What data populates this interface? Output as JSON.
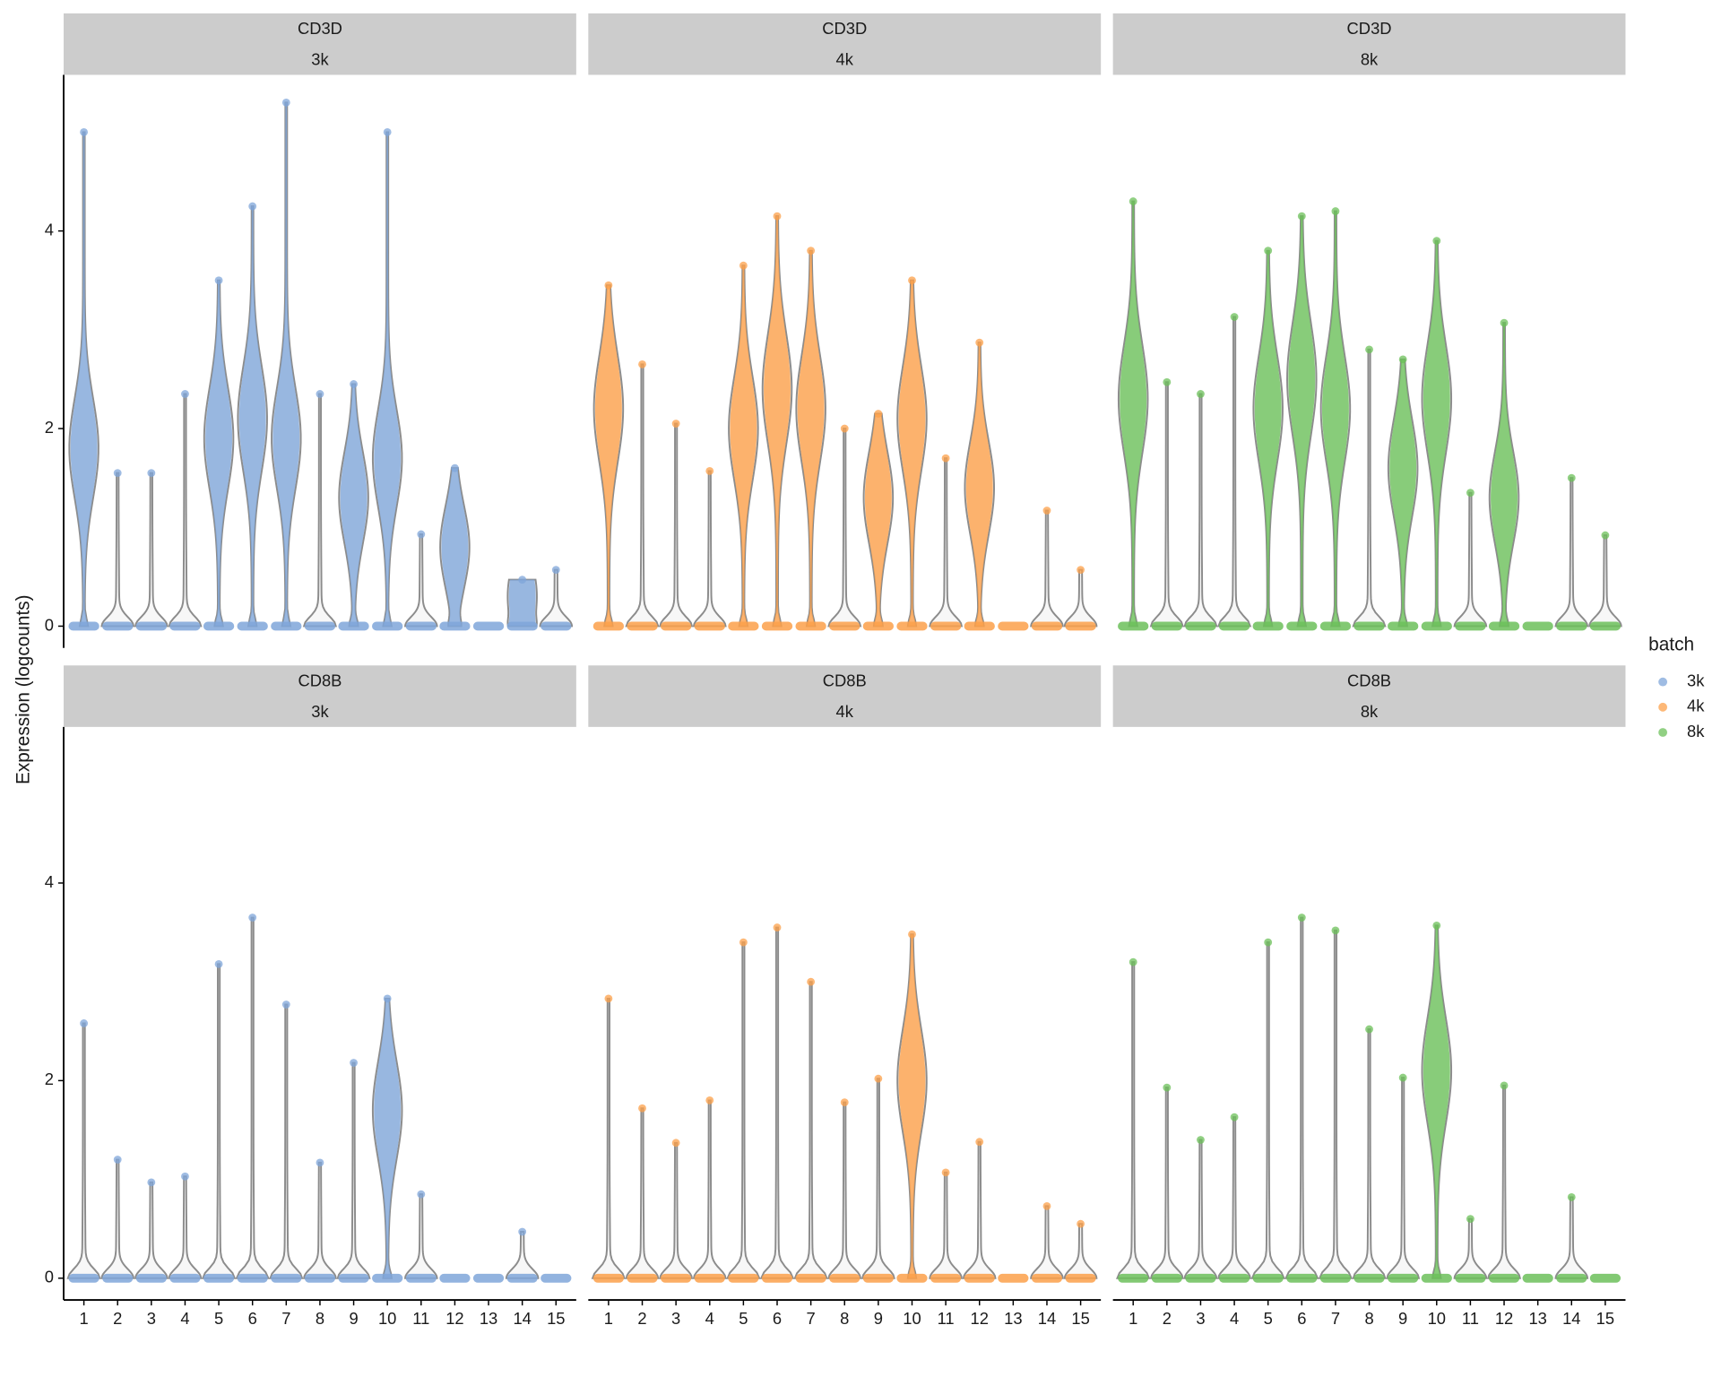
{
  "chart_data": {
    "type": "violin",
    "y_label": "Expression (logcounts)",
    "legend_title": "batch",
    "legend": [
      {
        "name": "3k",
        "color": "#7fa6d9"
      },
      {
        "name": "4k",
        "color": "#fca04a"
      },
      {
        "name": "8k",
        "color": "#6cc05a"
      }
    ],
    "categories": [
      "1",
      "2",
      "3",
      "4",
      "5",
      "6",
      "7",
      "8",
      "9",
      "10",
      "11",
      "12",
      "13",
      "14",
      "15"
    ],
    "ylim": [
      -0.22,
      5.58
    ],
    "yticks": [
      0,
      2,
      4
    ],
    "panels": [
      {
        "gene": "CD3D",
        "batch": "3k",
        "color": "#7fa6d9",
        "values": [
          5.0,
          1.55,
          1.55,
          2.35,
          3.5,
          4.25,
          5.3,
          2.35,
          2.45,
          5.0,
          0.93,
          1.6,
          0,
          0.47,
          0.57
        ],
        "medians": [
          1.8,
          0,
          0,
          0,
          1.9,
          2.1,
          1.9,
          0,
          1.3,
          1.7,
          0,
          0.8,
          0,
          0.3,
          0
        ]
      },
      {
        "gene": "CD3D",
        "batch": "4k",
        "color": "#fca04a",
        "values": [
          3.45,
          2.65,
          2.05,
          1.57,
          3.65,
          4.15,
          3.8,
          2.0,
          2.15,
          3.5,
          1.7,
          2.87,
          0,
          1.17,
          0.57
        ],
        "medians": [
          2.2,
          0,
          0,
          0,
          2.0,
          2.4,
          2.2,
          0,
          1.3,
          2.1,
          0,
          1.4,
          0,
          0,
          0
        ]
      },
      {
        "gene": "CD3D",
        "batch": "8k",
        "color": "#6cc05a",
        "values": [
          4.3,
          2.47,
          2.35,
          3.13,
          3.8,
          4.15,
          4.2,
          2.8,
          2.7,
          3.9,
          1.35,
          3.07,
          0,
          1.5,
          0.92
        ],
        "medians": [
          2.3,
          0,
          0,
          0,
          2.2,
          2.5,
          2.2,
          0,
          1.6,
          2.3,
          0,
          1.3,
          0,
          0,
          0
        ]
      },
      {
        "gene": "CD8B",
        "batch": "3k",
        "color": "#7fa6d9",
        "values": [
          2.58,
          1.2,
          0.97,
          1.03,
          3.18,
          3.65,
          2.77,
          1.17,
          2.18,
          2.83,
          0.85,
          0,
          0,
          0.47,
          0
        ],
        "medians": [
          0,
          0,
          0,
          0,
          0,
          0,
          0,
          0,
          0,
          1.7,
          0,
          0,
          0,
          0,
          0
        ]
      },
      {
        "gene": "CD8B",
        "batch": "4k",
        "color": "#fca04a",
        "values": [
          2.83,
          1.72,
          1.37,
          1.8,
          3.4,
          3.55,
          3.0,
          1.78,
          2.02,
          3.48,
          1.07,
          1.38,
          0,
          0.73,
          0.55
        ],
        "medians": [
          0,
          0,
          0,
          0,
          0,
          0,
          0,
          0,
          0,
          2.0,
          0,
          0,
          0,
          0,
          0
        ]
      },
      {
        "gene": "CD8B",
        "batch": "8k",
        "color": "#6cc05a",
        "values": [
          3.2,
          1.93,
          1.4,
          1.63,
          3.4,
          3.65,
          3.52,
          2.52,
          2.03,
          3.57,
          0.6,
          1.95,
          0,
          0.82,
          0
        ],
        "medians": [
          0,
          0,
          0,
          0,
          0,
          0,
          0,
          0,
          0,
          2.1,
          0,
          0,
          0,
          0,
          0
        ]
      }
    ]
  }
}
